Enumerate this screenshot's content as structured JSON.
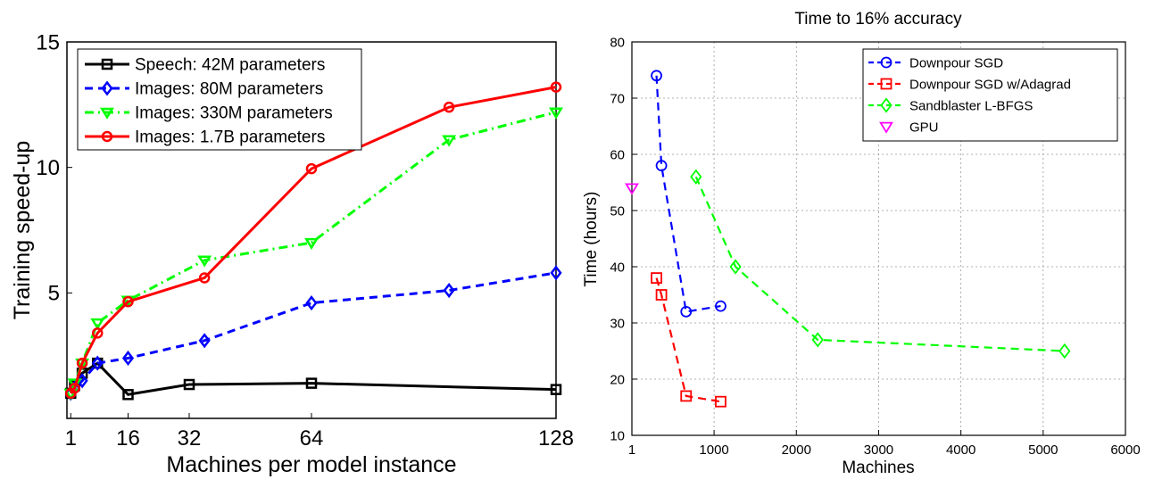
{
  "chart_data": [
    {
      "type": "line",
      "title": "",
      "xlabel": "Machines per model instance",
      "ylabel": "Training speed-up",
      "xlim": [
        0,
        128
      ],
      "ylim": [
        0,
        15
      ],
      "xticks": [
        1,
        16,
        32,
        64,
        128
      ],
      "yticks": [
        0,
        5,
        10,
        15
      ],
      "ytick_labels": [
        "",
        "5",
        "10",
        "15"
      ],
      "grid": false,
      "legend": "top-left",
      "series": [
        {
          "name": "Speech: 42M parameters",
          "color": "#000000",
          "dash": "solid",
          "marker": "square",
          "x": [
            1,
            2,
            4,
            8,
            16,
            32,
            64,
            128
          ],
          "y": [
            1.0,
            1.3,
            1.8,
            2.2,
            0.95,
            1.35,
            1.4,
            1.15
          ]
        },
        {
          "name": "Images: 80M parameters",
          "color": "#0000ff",
          "dash": "dashed",
          "marker": "diamond",
          "x": [
            1,
            2,
            4,
            8,
            16,
            36,
            64,
            100,
            128
          ],
          "y": [
            1.0,
            1.2,
            1.5,
            2.2,
            2.4,
            3.1,
            4.6,
            5.1,
            5.8
          ]
        },
        {
          "name": "Images: 330M parameters",
          "color": "#00ff00",
          "dash": "dashdot",
          "marker": "triangle-down",
          "x": [
            1,
            2,
            4,
            8,
            16,
            36,
            64,
            100,
            128
          ],
          "y": [
            1.0,
            1.4,
            2.2,
            3.8,
            4.7,
            6.3,
            7.0,
            11.1,
            12.2
          ]
        },
        {
          "name": "Images: 1.7B parameters",
          "color": "#ff0000",
          "dash": "solid",
          "marker": "circle",
          "x": [
            1,
            2,
            4,
            8,
            16,
            36,
            64,
            100,
            128
          ],
          "y": [
            1.0,
            1.2,
            2.2,
            3.4,
            4.65,
            5.6,
            9.95,
            12.4,
            13.2
          ]
        }
      ]
    },
    {
      "type": "line",
      "title": "Time to 16% accuracy",
      "xlabel": "Machines",
      "ylabel": "Time (hours)",
      "xlim": [
        1,
        6000
      ],
      "ylim": [
        10,
        80
      ],
      "xticks": [
        1,
        1000,
        2000,
        3000,
        4000,
        5000,
        6000
      ],
      "yticks": [
        10,
        20,
        30,
        40,
        50,
        60,
        70,
        80
      ],
      "grid": true,
      "legend": "top-right",
      "series": [
        {
          "name": "Downpour SGD",
          "color": "#0000ff",
          "dash": "dashed",
          "marker": "circle",
          "x": [
            300,
            360,
            660,
            1080
          ],
          "y": [
            74,
            58,
            32,
            33
          ]
        },
        {
          "name": "Downpour SGD w/Adagrad",
          "color": "#ff0000",
          "dash": "dashed",
          "marker": "square",
          "x": [
            300,
            360,
            660,
            1080
          ],
          "y": [
            38,
            35,
            17,
            16
          ]
        },
        {
          "name": "Sandblaster L-BFGS",
          "color": "#00ff00",
          "dash": "dashed",
          "marker": "diamond",
          "x": [
            780,
            1260,
            2260,
            5260
          ],
          "y": [
            56,
            40,
            27,
            25
          ]
        },
        {
          "name": "GPU",
          "color": "#ff00ff",
          "dash": "none",
          "marker": "triangle-down",
          "x": [
            1
          ],
          "y": [
            54
          ]
        }
      ]
    }
  ]
}
